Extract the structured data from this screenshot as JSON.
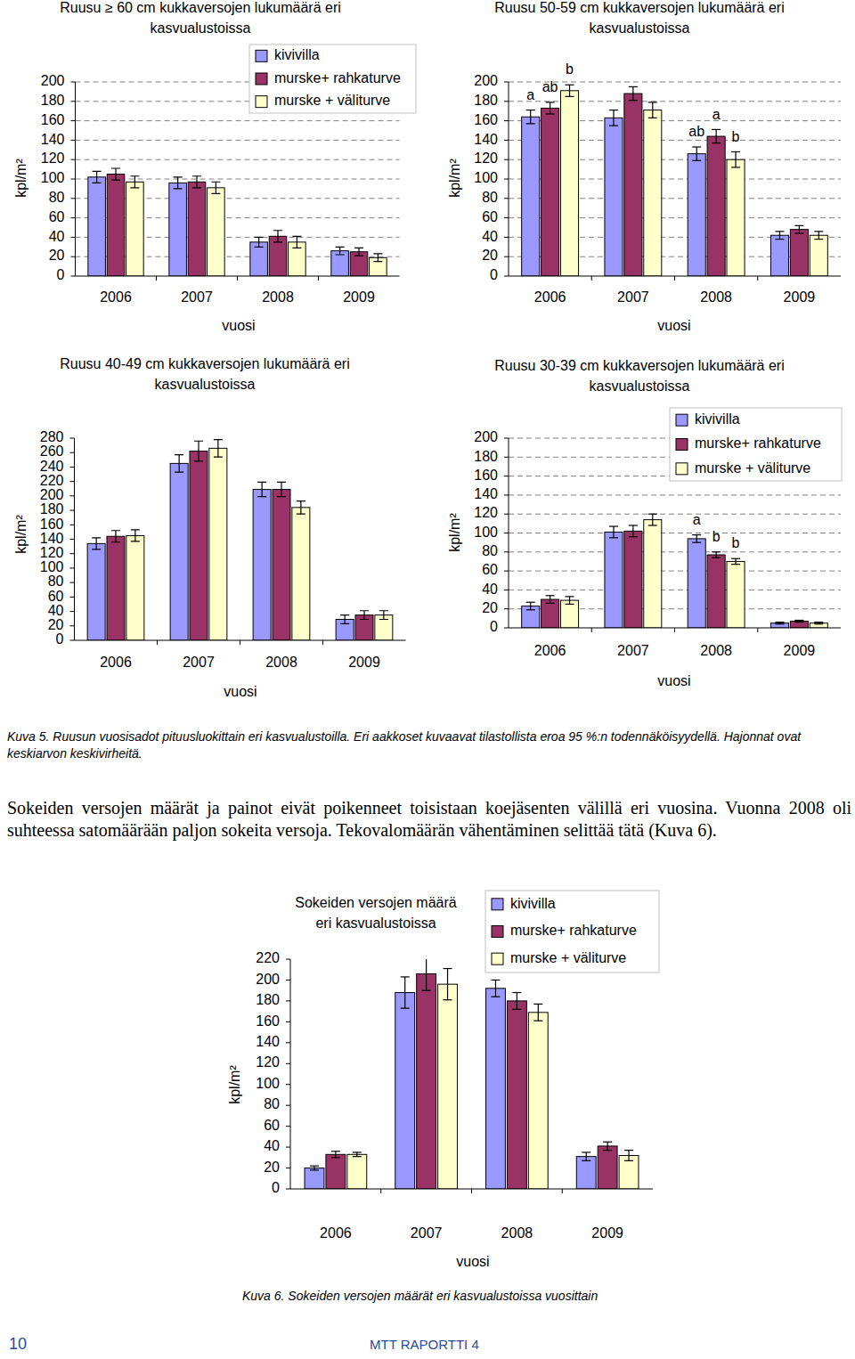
{
  "chart_data": [
    {
      "type": "bar",
      "title": [
        "Ruusu ≥ 60 cm kukkaversojen lukumäärä eri",
        "kasvualustoissa"
      ],
      "x_label": "vuosi",
      "y_label": "kpl/m²",
      "categories": [
        "2006",
        "2007",
        "2008",
        "2009"
      ],
      "ylim": [
        0,
        200
      ],
      "yticks": [
        0,
        20,
        40,
        60,
        80,
        100,
        120,
        140,
        160,
        180,
        200
      ],
      "grid": true,
      "legend": "top-right",
      "series": [
        {
          "name": "kivivilla",
          "color": "#9999ff",
          "values": [
            102,
            96,
            35,
            26
          ],
          "errors": [
            6,
            6,
            5,
            4
          ]
        },
        {
          "name": "murske+ rahkaturve",
          "color": "#993366",
          "values": [
            105,
            97,
            41,
            25
          ],
          "errors": [
            6,
            6,
            6,
            4
          ]
        },
        {
          "name": "murske + väliturve",
          "color": "#ffffcc",
          "values": [
            97,
            91,
            35,
            19
          ],
          "errors": [
            6,
            6,
            6,
            4
          ]
        }
      ]
    },
    {
      "type": "bar",
      "title": [
        "Ruusu 50-59 cm kukkaversojen lukumäärä eri",
        "kasvualustoissa"
      ],
      "x_label": "vuosi",
      "y_label": "kpl/m²",
      "categories": [
        "2006",
        "2007",
        "2008",
        "2009"
      ],
      "ylim": [
        0,
        200
      ],
      "yticks": [
        0,
        20,
        40,
        60,
        80,
        100,
        120,
        140,
        160,
        180,
        200
      ],
      "grid": true,
      "series": [
        {
          "color": "#9999ff",
          "values": [
            164,
            163,
            126,
            42
          ],
          "errors": [
            7,
            8,
            7,
            4
          ]
        },
        {
          "color": "#993366",
          "values": [
            173,
            188,
            144,
            48
          ],
          "errors": [
            6,
            7,
            7,
            4
          ]
        },
        {
          "color": "#ffffcc",
          "values": [
            191,
            171,
            120,
            42
          ],
          "errors": [
            6,
            8,
            8,
            4
          ]
        }
      ],
      "annotations": [
        {
          "category_index": 0,
          "series_index": 0,
          "text": "a"
        },
        {
          "category_index": 0,
          "series_index": 1,
          "text": "ab"
        },
        {
          "category_index": 0,
          "series_index": 2,
          "text": "b"
        },
        {
          "category_index": 2,
          "series_index": 0,
          "text": "ab"
        },
        {
          "category_index": 2,
          "series_index": 1,
          "text": "a"
        },
        {
          "category_index": 2,
          "series_index": 2,
          "text": "b"
        }
      ]
    },
    {
      "type": "bar",
      "title": [
        "Ruusu 40-49 cm kukkaversojen lukumäärä eri",
        "kasvualustoissa"
      ],
      "x_label": "vuosi",
      "y_label": "kpl/m²",
      "categories": [
        "2006",
        "2007",
        "2008",
        "2009"
      ],
      "ylim": [
        0,
        280
      ],
      "yticks": [
        0,
        20,
        40,
        60,
        80,
        100,
        120,
        140,
        160,
        180,
        200,
        220,
        240,
        260,
        280
      ],
      "grid": false,
      "series": [
        {
          "color": "#9999ff",
          "values": [
            134,
            245,
            209,
            29
          ],
          "errors": [
            8,
            12,
            10,
            6
          ]
        },
        {
          "color": "#993366",
          "values": [
            144,
            262,
            209,
            35
          ],
          "errors": [
            8,
            14,
            10,
            6
          ]
        },
        {
          "color": "#ffffcc",
          "values": [
            145,
            266,
            184,
            35
          ],
          "errors": [
            8,
            12,
            9,
            6
          ]
        }
      ]
    },
    {
      "type": "bar",
      "title": [
        "Ruusu 30-39 cm kukkaversojen lukumäärä eri",
        "kasvualustoissa"
      ],
      "x_label": "vuosi",
      "y_label": "kpl/m²",
      "categories": [
        "2006",
        "2007",
        "2008",
        "2009"
      ],
      "ylim": [
        0,
        200
      ],
      "yticks": [
        0,
        20,
        40,
        60,
        80,
        100,
        120,
        140,
        160,
        180,
        200
      ],
      "grid": true,
      "legend": "top-right",
      "series": [
        {
          "name": "kivivilla",
          "color": "#9999ff",
          "values": [
            23,
            101,
            94,
            5
          ],
          "errors": [
            4,
            6,
            4,
            1
          ]
        },
        {
          "name": "murske+ rahkaturve",
          "color": "#993366",
          "values": [
            30,
            102,
            77,
            7
          ],
          "errors": [
            4,
            6,
            3,
            1
          ]
        },
        {
          "name": "murske + väliturve",
          "color": "#ffffcc",
          "values": [
            29,
            114,
            70,
            5
          ],
          "errors": [
            4,
            6,
            3,
            1
          ]
        }
      ],
      "annotations": [
        {
          "category_index": 2,
          "series_index": 0,
          "text": "a"
        },
        {
          "category_index": 2,
          "series_index": 1,
          "text": "b"
        },
        {
          "category_index": 2,
          "series_index": 2,
          "text": "b"
        }
      ]
    },
    {
      "type": "bar",
      "title": [
        "Sokeiden versojen määrä",
        "eri kasvualustoissa"
      ],
      "x_label": "vuosi",
      "y_label": "kpl/m²",
      "categories": [
        "2006",
        "2007",
        "2008",
        "2009"
      ],
      "ylim": [
        0,
        220
      ],
      "yticks": [
        0,
        20,
        40,
        60,
        80,
        100,
        120,
        140,
        160,
        180,
        200,
        220
      ],
      "grid": false,
      "legend": "top-right",
      "series": [
        {
          "name": "kivivilla",
          "color": "#9999ff",
          "values": [
            20,
            188,
            192,
            31
          ],
          "errors": [
            2,
            15,
            8,
            4
          ]
        },
        {
          "name": "murske+ rahkaturve",
          "color": "#993366",
          "values": [
            33,
            206,
            180,
            41
          ],
          "errors": [
            3,
            16,
            8,
            4
          ]
        },
        {
          "name": "murske + väliturve",
          "color": "#ffffcc",
          "values": [
            33,
            196,
            169,
            32
          ],
          "errors": [
            2,
            15,
            8,
            5
          ]
        }
      ]
    }
  ],
  "document": {
    "caption_5": "Kuva 5. Ruusun vuosisadot pituusluokittain eri kasvualustoilla. Eri aakkoset kuvaavat tilastollista eroa 95 %:n todennäköisyydellä. Hajonnat ovat keskiarvon keskivirheitä.",
    "paragraph": "Sokeiden versojen määrät ja painot eivät poikenneet toisistaan koejäsenten välillä eri vuosina. Vuonna 2008 oli suhteessa satomäärään paljon sokeita versoja. Tekovalomäärän vähentäminen selittää tätä (Kuva 6).",
    "caption_6": "Kuva 6. Sokeiden versojen määrät eri kasvualustoissa vuosittain",
    "page_number": "10",
    "publication": "MTT RAPORTTI 4"
  }
}
